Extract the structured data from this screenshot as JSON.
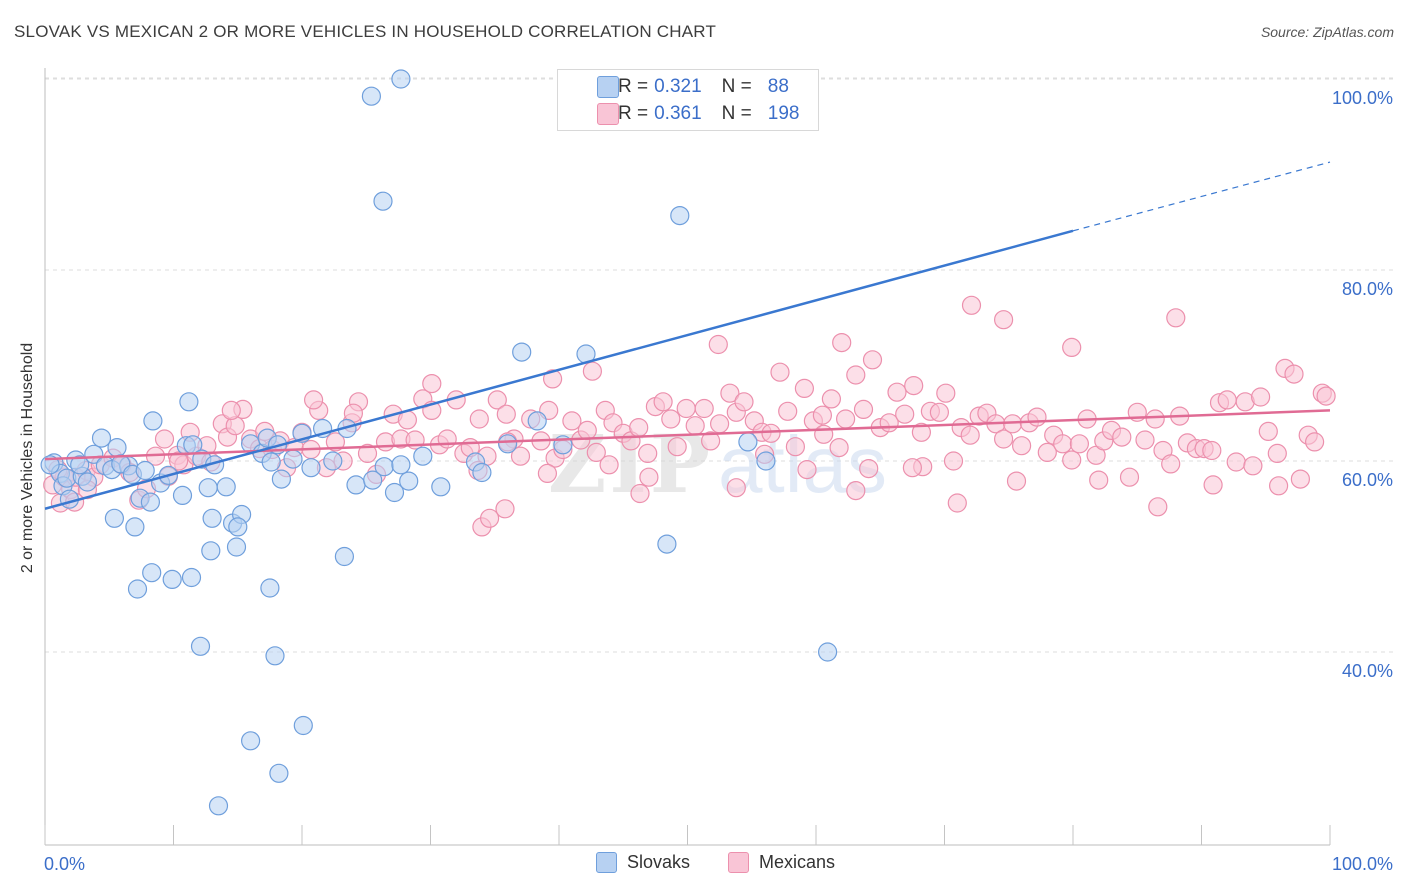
{
  "header": {
    "title": "SLOVAK VS MEXICAN 2 OR MORE VEHICLES IN HOUSEHOLD CORRELATION CHART",
    "source": "Source: ZipAtlas.com"
  },
  "legend_top": {
    "rows": [
      {
        "r_label": "R =",
        "r_value": "0.321",
        "n_label": "N =",
        "n_value": "88"
      },
      {
        "r_label": "R =",
        "r_value": "0.361",
        "n_label": "N =",
        "n_value": "198"
      }
    ]
  },
  "legend_bottom": {
    "items": [
      "Slovaks",
      "Mexicans"
    ]
  },
  "colors": {
    "slovak_fill": "#b7d1f2",
    "slovak_stroke": "#6f9fdc",
    "slovak_line": "#3a78d0",
    "mexican_fill": "#f9c5d6",
    "mexican_stroke": "#ec90ad",
    "mexican_line": "#e06b94",
    "axis_label": "#3b6ec9",
    "grid": "#dedede"
  },
  "chart_data": {
    "type": "scatter",
    "title": "SLOVAK VS MEXICAN 2 OR MORE VEHICLES IN HOUSEHOLD CORRELATION CHART",
    "xlabel": "",
    "ylabel": "2 or more Vehicles in Household",
    "x_tick_labels": [
      "0.0%",
      "100.0%"
    ],
    "y_tick_labels": [
      "40.0%",
      "60.0%",
      "80.0%",
      "100.0%"
    ],
    "y_ticks": [
      40,
      60,
      80,
      100
    ],
    "xlim": [
      0,
      100
    ],
    "ylim": [
      20.5,
      101.5
    ],
    "grid": "horizontal dashed",
    "watermark": "ZIPatlas",
    "series": [
      {
        "name": "Slovaks",
        "r": 0.321,
        "n": 88,
        "trend": {
          "x": [
            0,
            80
          ],
          "y": [
            55.0,
            84.1
          ],
          "dashed_to": [
            100,
            91.3
          ]
        },
        "points": [
          [
            0.7,
            59.8
          ],
          [
            1.2,
            58.7
          ],
          [
            1.4,
            57.4
          ],
          [
            1.7,
            58.2
          ],
          [
            1.9,
            56.0
          ],
          [
            2.4,
            60.1
          ],
          [
            2.9,
            58.4
          ],
          [
            3.3,
            57.8
          ],
          [
            2.7,
            59.6
          ],
          [
            0.4,
            59.6
          ],
          [
            3.8,
            60.7
          ],
          [
            4.4,
            62.4
          ],
          [
            4.7,
            59.5
          ],
          [
            5.2,
            59.1
          ],
          [
            5.6,
            61.4
          ],
          [
            5.4,
            54.0
          ],
          [
            6.5,
            59.5
          ],
          [
            5.9,
            59.7
          ],
          [
            6.8,
            58.6
          ],
          [
            7.4,
            56.1
          ],
          [
            7.8,
            59.0
          ],
          [
            8.2,
            55.7
          ],
          [
            9.0,
            57.7
          ],
          [
            7.0,
            53.1
          ],
          [
            8.4,
            64.2
          ],
          [
            9.6,
            58.5
          ],
          [
            10.7,
            56.4
          ],
          [
            11.0,
            61.6
          ],
          [
            11.5,
            61.7
          ],
          [
            11.2,
            66.2
          ],
          [
            12.2,
            60.2
          ],
          [
            13.2,
            59.6
          ],
          [
            12.7,
            57.2
          ],
          [
            14.1,
            57.3
          ],
          [
            13.0,
            54.0
          ],
          [
            14.6,
            53.5
          ],
          [
            15.3,
            54.4
          ],
          [
            15.0,
            53.1
          ],
          [
            16.0,
            61.8
          ],
          [
            16.9,
            60.8
          ],
          [
            17.3,
            62.4
          ],
          [
            17.6,
            59.9
          ],
          [
            18.1,
            61.7
          ],
          [
            18.4,
            58.1
          ],
          [
            19.3,
            60.2
          ],
          [
            20.0,
            62.9
          ],
          [
            20.7,
            59.3
          ],
          [
            21.6,
            63.4
          ],
          [
            22.4,
            60.0
          ],
          [
            23.5,
            63.4
          ],
          [
            24.2,
            57.5
          ],
          [
            25.5,
            58.0
          ],
          [
            26.4,
            59.4
          ],
          [
            27.2,
            56.7
          ],
          [
            27.7,
            59.6
          ],
          [
            28.3,
            57.9
          ],
          [
            29.4,
            60.5
          ],
          [
            30.8,
            57.3
          ],
          [
            33.5,
            59.9
          ],
          [
            34.0,
            58.8
          ],
          [
            36.0,
            61.8
          ],
          [
            38.3,
            64.2
          ],
          [
            7.2,
            46.6
          ],
          [
            8.3,
            48.3
          ],
          [
            9.9,
            47.6
          ],
          [
            11.4,
            47.8
          ],
          [
            12.1,
            40.6
          ],
          [
            12.9,
            50.6
          ],
          [
            14.9,
            51.0
          ],
          [
            17.5,
            46.7
          ],
          [
            17.9,
            39.6
          ],
          [
            16.0,
            30.7
          ],
          [
            18.2,
            27.3
          ],
          [
            20.1,
            32.3
          ],
          [
            13.5,
            23.9
          ],
          [
            23.3,
            50.0
          ],
          [
            25.4,
            98.2
          ],
          [
            27.7,
            100.0
          ],
          [
            37.1,
            71.4
          ],
          [
            26.3,
            87.2
          ],
          [
            42.5,
            100.0
          ],
          [
            42.1,
            71.2
          ],
          [
            48.4,
            51.3
          ],
          [
            40.3,
            61.7
          ],
          [
            56.1,
            60.0
          ],
          [
            60.9,
            40.0
          ],
          [
            49.4,
            85.7
          ],
          [
            54.7,
            62.0
          ]
        ]
      },
      {
        "name": "Mexicans",
        "r": 0.361,
        "n": 198,
        "trend": {
          "x": [
            0,
            100
          ],
          "y": [
            60.2,
            65.3
          ]
        },
        "points": [
          [
            0.6,
            57.5
          ],
          [
            1.2,
            55.6
          ],
          [
            1.5,
            58.3
          ],
          [
            2.0,
            57.0
          ],
          [
            2.4,
            58.3
          ],
          [
            3.2,
            59.0
          ],
          [
            3.8,
            58.3
          ],
          [
            4.3,
            59.6
          ],
          [
            5.3,
            60.3
          ],
          [
            6.0,
            59.6
          ],
          [
            6.6,
            58.8
          ],
          [
            7.3,
            55.9
          ],
          [
            7.9,
            57.1
          ],
          [
            8.6,
            60.5
          ],
          [
            9.3,
            62.3
          ],
          [
            9.6,
            58.4
          ],
          [
            10.3,
            60.6
          ],
          [
            10.8,
            59.6
          ],
          [
            11.3,
            63.0
          ],
          [
            11.8,
            60.5
          ],
          [
            12.6,
            61.6
          ],
          [
            12.9,
            59.9
          ],
          [
            13.8,
            63.9
          ],
          [
            14.2,
            62.5
          ],
          [
            14.8,
            63.7
          ],
          [
            15.4,
            65.4
          ],
          [
            16.0,
            62.3
          ],
          [
            16.7,
            61.3
          ],
          [
            17.1,
            63.1
          ],
          [
            17.7,
            61.2
          ],
          [
            18.3,
            62.1
          ],
          [
            18.8,
            59.3
          ],
          [
            19.4,
            61.4
          ],
          [
            20.0,
            63.0
          ],
          [
            20.7,
            61.2
          ],
          [
            21.3,
            65.3
          ],
          [
            21.9,
            59.3
          ],
          [
            22.6,
            62.0
          ],
          [
            23.2,
            60.0
          ],
          [
            23.9,
            64.0
          ],
          [
            24.4,
            66.2
          ],
          [
            25.1,
            60.8
          ],
          [
            25.8,
            58.6
          ],
          [
            26.5,
            62.0
          ],
          [
            27.1,
            64.9
          ],
          [
            27.7,
            62.3
          ],
          [
            28.2,
            64.3
          ],
          [
            28.8,
            62.2
          ],
          [
            29.4,
            66.5
          ],
          [
            30.1,
            65.3
          ],
          [
            30.7,
            61.7
          ],
          [
            31.3,
            62.3
          ],
          [
            32.0,
            66.4
          ],
          [
            32.6,
            60.8
          ],
          [
            33.1,
            61.4
          ],
          [
            33.8,
            64.4
          ],
          [
            34.4,
            60.5
          ],
          [
            35.2,
            66.4
          ],
          [
            35.9,
            64.9
          ],
          [
            36.5,
            62.3
          ],
          [
            37.0,
            60.5
          ],
          [
            37.8,
            64.4
          ],
          [
            38.6,
            62.1
          ],
          [
            39.2,
            65.3
          ],
          [
            39.7,
            60.3
          ],
          [
            40.3,
            61.2
          ],
          [
            41.0,
            64.2
          ],
          [
            41.7,
            62.2
          ],
          [
            42.2,
            63.2
          ],
          [
            42.9,
            60.9
          ],
          [
            43.6,
            65.3
          ],
          [
            44.2,
            64.0
          ],
          [
            45.0,
            62.9
          ],
          [
            45.6,
            62.1
          ],
          [
            46.2,
            63.5
          ],
          [
            46.9,
            60.8
          ],
          [
            47.5,
            65.7
          ],
          [
            48.1,
            66.2
          ],
          [
            48.7,
            64.4
          ],
          [
            49.2,
            61.5
          ],
          [
            49.9,
            65.5
          ],
          [
            50.6,
            63.7
          ],
          [
            51.3,
            65.5
          ],
          [
            51.8,
            62.1
          ],
          [
            52.5,
            63.9
          ],
          [
            53.3,
            67.1
          ],
          [
            53.8,
            65.1
          ],
          [
            54.4,
            66.2
          ],
          [
            55.2,
            64.2
          ],
          [
            55.8,
            63.0
          ],
          [
            56.5,
            62.9
          ],
          [
            57.2,
            69.3
          ],
          [
            57.8,
            65.2
          ],
          [
            58.4,
            61.5
          ],
          [
            59.1,
            67.6
          ],
          [
            59.8,
            64.2
          ],
          [
            60.5,
            64.8
          ],
          [
            61.2,
            66.5
          ],
          [
            61.8,
            61.4
          ],
          [
            62.3,
            64.4
          ],
          [
            63.1,
            69.0
          ],
          [
            63.7,
            65.4
          ],
          [
            64.4,
            70.6
          ],
          [
            65.0,
            63.5
          ],
          [
            65.7,
            64.0
          ],
          [
            66.3,
            67.2
          ],
          [
            66.9,
            64.9
          ],
          [
            67.6,
            67.9
          ],
          [
            68.2,
            63.0
          ],
          [
            68.9,
            65.2
          ],
          [
            69.6,
            65.1
          ],
          [
            70.1,
            67.1
          ],
          [
            70.7,
            60.0
          ],
          [
            71.3,
            63.5
          ],
          [
            72.0,
            62.7
          ],
          [
            72.7,
            64.7
          ],
          [
            73.3,
            65.0
          ],
          [
            74.0,
            63.9
          ],
          [
            74.6,
            62.3
          ],
          [
            75.3,
            63.9
          ],
          [
            76.0,
            61.6
          ],
          [
            76.6,
            64.0
          ],
          [
            77.2,
            64.6
          ],
          [
            78.0,
            60.9
          ],
          [
            78.5,
            62.7
          ],
          [
            79.2,
            61.8
          ],
          [
            79.9,
            60.1
          ],
          [
            80.5,
            61.8
          ],
          [
            81.1,
            64.4
          ],
          [
            81.8,
            60.6
          ],
          [
            82.4,
            62.1
          ],
          [
            83.0,
            63.2
          ],
          [
            83.8,
            62.5
          ],
          [
            84.4,
            58.3
          ],
          [
            85.0,
            65.1
          ],
          [
            85.6,
            62.2
          ],
          [
            86.4,
            64.4
          ],
          [
            87.0,
            61.1
          ],
          [
            87.6,
            59.7
          ],
          [
            88.3,
            64.7
          ],
          [
            88.9,
            61.9
          ],
          [
            89.6,
            61.3
          ],
          [
            90.2,
            61.3
          ],
          [
            90.8,
            61.1
          ],
          [
            91.4,
            66.1
          ],
          [
            92.0,
            66.4
          ],
          [
            92.7,
            59.9
          ],
          [
            93.4,
            66.2
          ],
          [
            94.0,
            59.5
          ],
          [
            94.6,
            66.7
          ],
          [
            95.2,
            63.1
          ],
          [
            95.9,
            60.8
          ],
          [
            96.5,
            69.7
          ],
          [
            97.2,
            69.1
          ],
          [
            97.7,
            58.1
          ],
          [
            98.3,
            62.7
          ],
          [
            98.8,
            62.0
          ],
          [
            99.4,
            67.1
          ],
          [
            99.7,
            66.8
          ],
          [
            33.7,
            59.0
          ],
          [
            34.0,
            53.1
          ],
          [
            35.8,
            55.0
          ],
          [
            39.1,
            58.7
          ],
          [
            46.3,
            56.6
          ],
          [
            53.8,
            57.2
          ],
          [
            59.3,
            59.1
          ],
          [
            64.1,
            59.2
          ],
          [
            68.3,
            59.4
          ],
          [
            71.0,
            55.6
          ],
          [
            75.6,
            57.9
          ],
          [
            82.0,
            58.0
          ],
          [
            86.6,
            55.2
          ],
          [
            90.9,
            57.5
          ],
          [
            96.0,
            57.4
          ],
          [
            43.9,
            59.6
          ],
          [
            47.0,
            58.3
          ],
          [
            56.0,
            60.7
          ],
          [
            60.6,
            62.8
          ],
          [
            63.1,
            56.9
          ],
          [
            67.5,
            59.3
          ],
          [
            34.6,
            54.0
          ],
          [
            36.0,
            62.0
          ],
          [
            74.6,
            74.8
          ],
          [
            88.0,
            75.0
          ],
          [
            79.9,
            71.9
          ],
          [
            72.1,
            76.3
          ],
          [
            62.0,
            72.4
          ],
          [
            52.4,
            72.2
          ],
          [
            42.6,
            69.4
          ],
          [
            39.5,
            68.6
          ],
          [
            30.1,
            68.1
          ],
          [
            24.0,
            65.0
          ],
          [
            20.9,
            66.4
          ],
          [
            14.5,
            65.3
          ],
          [
            10.4,
            60.0
          ],
          [
            3.3,
            57.0
          ],
          [
            1.0,
            59.1
          ],
          [
            2.3,
            55.7
          ]
        ]
      }
    ]
  }
}
